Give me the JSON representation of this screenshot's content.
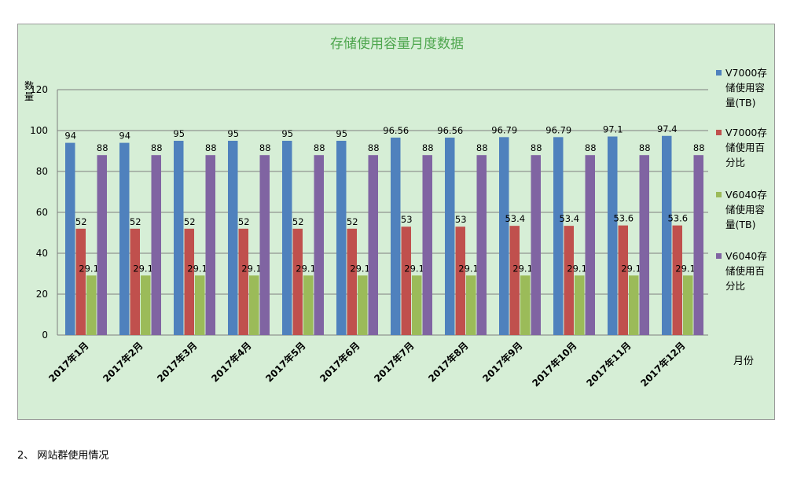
{
  "chart_data": {
    "type": "bar",
    "title": "存储使用容量月度数据",
    "ylabel": "数量",
    "xlabel": "月份",
    "ylim": [
      0,
      120
    ],
    "yticks": [
      0,
      20,
      40,
      60,
      80,
      100,
      120
    ],
    "grid": true,
    "legend_position": "right",
    "categories": [
      "2017年1月",
      "2017年2月",
      "2017年3月",
      "2017年4月",
      "2017年5月",
      "2017年6月",
      "2017年7月",
      "2017年8月",
      "2017年9月",
      "2017年10月",
      "2017年11月",
      "2017年12月"
    ],
    "series": [
      {
        "name": "V7000存储使用容量(TB)",
        "legend_lines": [
          "V7000存",
          "储使用容",
          "量(TB)"
        ],
        "color": "#4f81bd",
        "values": [
          94,
          94,
          95,
          95,
          95,
          95,
          96.56,
          96.56,
          96.79,
          96.79,
          97.1,
          97.4
        ],
        "labels": [
          "94",
          "94",
          "95",
          "95",
          "95",
          "95",
          "96.56",
          "96.56",
          "96.79",
          "96.79",
          "97.1",
          "97.4"
        ]
      },
      {
        "name": "V7000存储使用百分比",
        "legend_lines": [
          "V7000存",
          "储使用百",
          "分比"
        ],
        "color": "#c0504d",
        "values": [
          52,
          52,
          52,
          52,
          52,
          52,
          53,
          53,
          53.4,
          53.4,
          53.6,
          53.6
        ],
        "labels": [
          "52",
          "52",
          "52",
          "52",
          "52",
          "52",
          "53",
          "53",
          "53.4",
          "53.4",
          "53.6",
          "53.6"
        ]
      },
      {
        "name": "V6040存储使用容量(TB)",
        "legend_lines": [
          "V6040存",
          "储使用容",
          "量(TB)"
        ],
        "color": "#9bbb59",
        "values": [
          29.12,
          29.12,
          29.12,
          29.12,
          29.12,
          29.12,
          29.12,
          29.12,
          29.12,
          29.12,
          29.12,
          29.12
        ],
        "labels": [
          "29.12",
          "29.12",
          "29.12",
          "29.12",
          "29.12",
          "29.12",
          "29.12",
          "29.12",
          "29.12",
          "29.12",
          "29.12",
          "29.12"
        ]
      },
      {
        "name": "V6040存储使用百分比",
        "legend_lines": [
          "V6040存",
          "储使用百",
          "分比"
        ],
        "color": "#8064a2",
        "values": [
          88,
          88,
          88,
          88,
          88,
          88,
          88,
          88,
          88,
          88,
          88,
          88
        ],
        "labels": [
          "88",
          "88",
          "88",
          "88",
          "88",
          "88",
          "88",
          "88",
          "88",
          "88",
          "88",
          "88"
        ]
      }
    ],
    "colors": {
      "background": "#d6eed6",
      "title": "#4ea64e",
      "grid": "#7f7f7f"
    }
  },
  "caption": "2、 网站群使用情况"
}
